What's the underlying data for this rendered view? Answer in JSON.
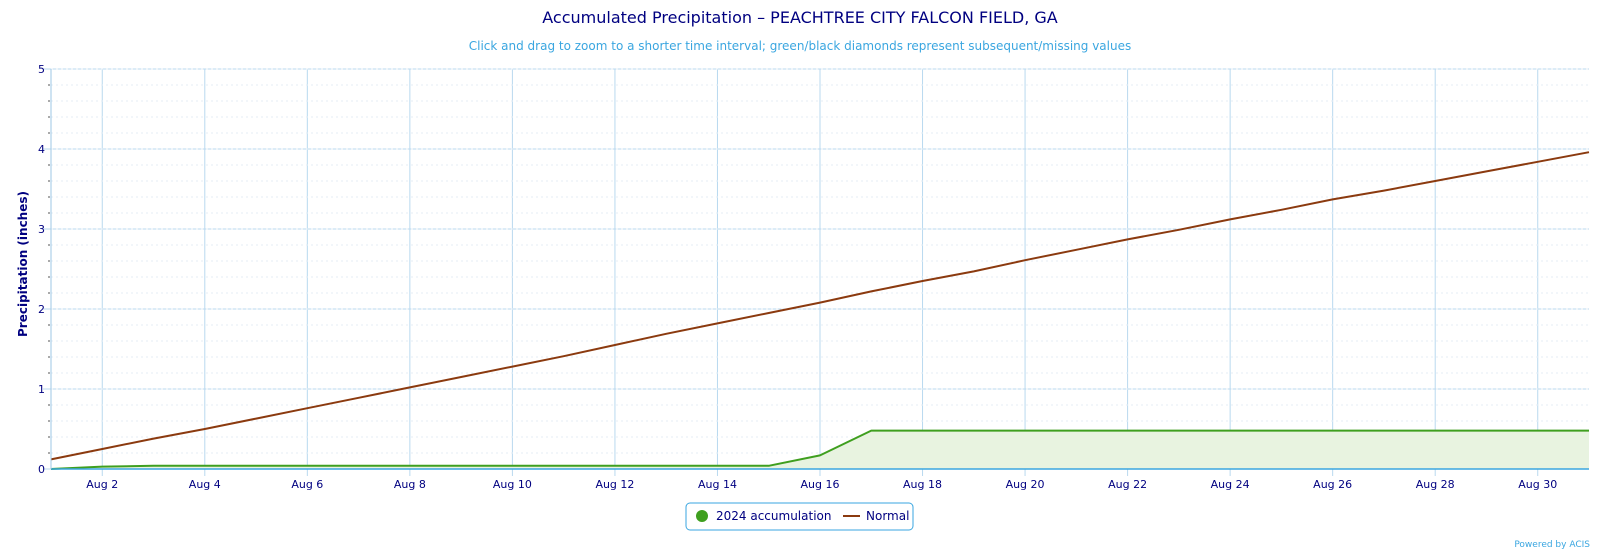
{
  "colors": {
    "accumulation": "#3f9f1f",
    "accumulation_fill": "#e8f3e0",
    "normal": "#8b3a0f",
    "grid": "#b9d9ef",
    "text": "#000080",
    "subtitle": "#3aa6e0"
  },
  "chart_data": {
    "type": "area",
    "title": "Accumulated Precipitation – PEACHTREE CITY FALCON FIELD, GA",
    "subtitle": "Click and drag to zoom to a shorter time interval; green/black diamonds represent subsequent/missing values",
    "ylabel": "Precipitation (inches)",
    "xlabel": "",
    "ylim": [
      0,
      5
    ],
    "y_ticks": [
      "0",
      "1",
      "2",
      "3",
      "4",
      "5"
    ],
    "x_range_days": [
      1,
      31
    ],
    "x_ticks": [
      {
        "day": 2,
        "label": "Aug 2"
      },
      {
        "day": 4,
        "label": "Aug 4"
      },
      {
        "day": 6,
        "label": "Aug 6"
      },
      {
        "day": 8,
        "label": "Aug 8"
      },
      {
        "day": 10,
        "label": "Aug 10"
      },
      {
        "day": 12,
        "label": "Aug 12"
      },
      {
        "day": 14,
        "label": "Aug 14"
      },
      {
        "day": 16,
        "label": "Aug 16"
      },
      {
        "day": 18,
        "label": "Aug 18"
      },
      {
        "day": 20,
        "label": "Aug 20"
      },
      {
        "day": 22,
        "label": "Aug 22"
      },
      {
        "day": 24,
        "label": "Aug 24"
      },
      {
        "day": 26,
        "label": "Aug 26"
      },
      {
        "day": 28,
        "label": "Aug 28"
      },
      {
        "day": 30,
        "label": "Aug 30"
      }
    ],
    "grid": true,
    "legend_position": "bottom-center",
    "series": [
      {
        "name": "2024 accumulation",
        "style": "area",
        "x": [
          1,
          2,
          3,
          4,
          5,
          6,
          7,
          8,
          9,
          10,
          11,
          12,
          13,
          14,
          15,
          16,
          17,
          18,
          19,
          20,
          21,
          22,
          23,
          24,
          25,
          26,
          27,
          28,
          29,
          30,
          31
        ],
        "values": [
          0.0,
          0.03,
          0.04,
          0.04,
          0.04,
          0.04,
          0.04,
          0.04,
          0.04,
          0.04,
          0.04,
          0.04,
          0.04,
          0.04,
          0.04,
          0.17,
          0.48,
          0.48,
          0.48,
          0.48,
          0.48,
          0.48,
          0.48,
          0.48,
          0.48,
          0.48,
          0.48,
          0.48,
          0.48,
          0.48,
          0.48
        ]
      },
      {
        "name": "Normal",
        "style": "line",
        "x": [
          1,
          2,
          3,
          4,
          5,
          6,
          7,
          8,
          9,
          10,
          11,
          12,
          13,
          14,
          15,
          16,
          17,
          18,
          19,
          20,
          21,
          22,
          23,
          24,
          25,
          26,
          27,
          28,
          29,
          30,
          31
        ],
        "values": [
          0.12,
          0.25,
          0.38,
          0.5,
          0.63,
          0.76,
          0.89,
          1.02,
          1.15,
          1.28,
          1.41,
          1.55,
          1.69,
          1.82,
          1.95,
          2.08,
          2.22,
          2.35,
          2.47,
          2.61,
          2.74,
          2.87,
          2.99,
          3.12,
          3.24,
          3.37,
          3.48,
          3.6,
          3.72,
          3.84,
          3.96
        ]
      }
    ]
  },
  "credit": "Powered by ACIS"
}
